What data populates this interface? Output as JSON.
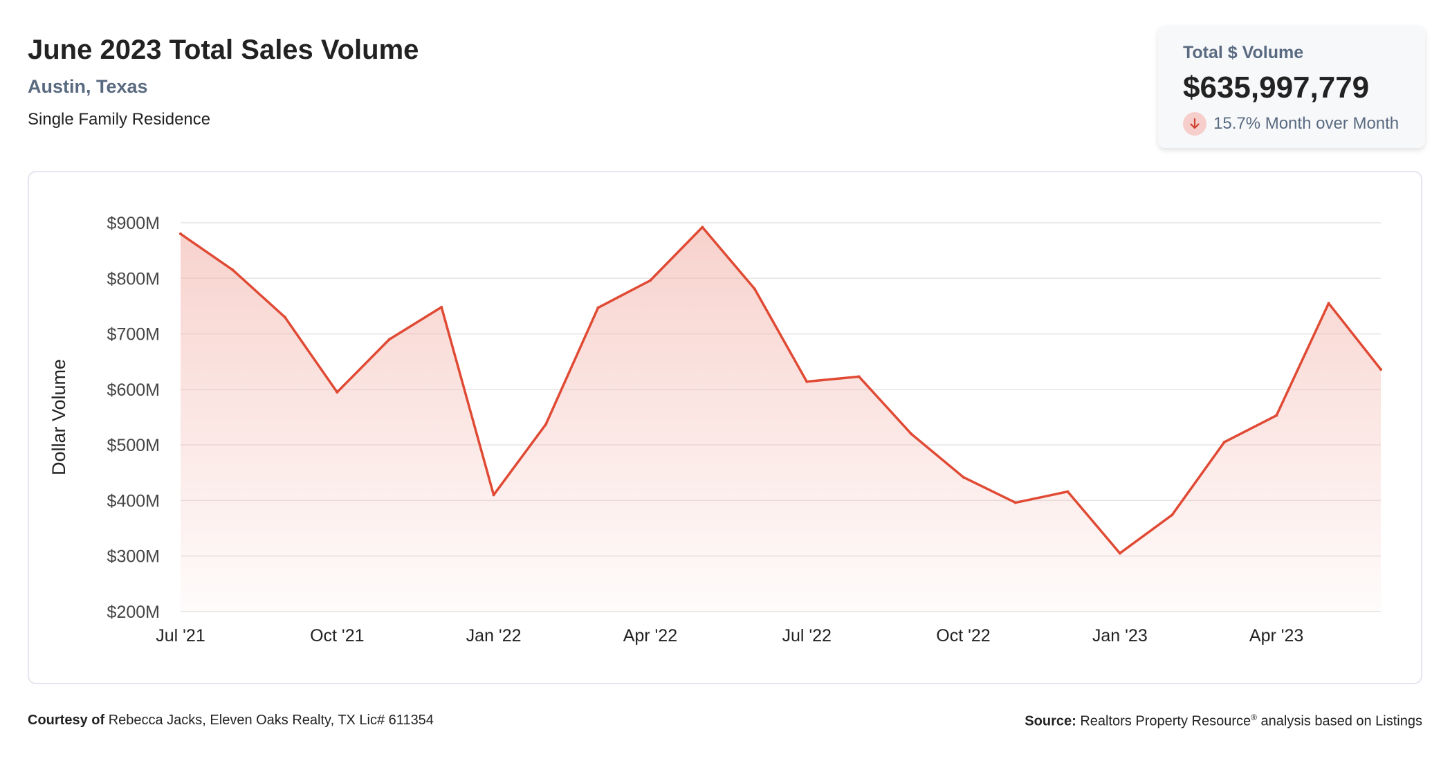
{
  "header": {
    "title": "June 2023 Total Sales Volume",
    "location": "Austin, Texas",
    "property_type": "Single Family Residence"
  },
  "kpi": {
    "label": "Total $ Volume",
    "value": "$635,997,779",
    "change_text": "15.7% Month over Month",
    "direction_icon": "arrow-down-icon"
  },
  "footer": {
    "courtesy_label": "Courtesy of",
    "courtesy_text": "Rebecca Jacks, Eleven Oaks Realty, TX Lic# 611354",
    "source_label": "Source:",
    "source_text_a": "Realtors Property Resource",
    "source_reg": "®",
    "source_text_b": "analysis based on Listings"
  },
  "colors": {
    "line": "#e04a34",
    "fill": "#f3b6ae",
    "grid": "#e4e4e4",
    "label": "#596a80",
    "badge": "#f6cfcc"
  },
  "chart_data": {
    "type": "area",
    "ylabel": "Dollar Volume",
    "ylim": [
      200,
      900
    ],
    "yticks": [
      {
        "value": 900,
        "label": "$900M"
      },
      {
        "value": 800,
        "label": "$800M"
      },
      {
        "value": 700,
        "label": "$700M"
      },
      {
        "value": 600,
        "label": "$600M"
      },
      {
        "value": 500,
        "label": "$500M"
      },
      {
        "value": 400,
        "label": "$400M"
      },
      {
        "value": 300,
        "label": "$300M"
      },
      {
        "value": 200,
        "label": "$200M"
      }
    ],
    "xticks": [
      {
        "index": 0,
        "label": "Jul '21"
      },
      {
        "index": 3,
        "label": "Oct '21"
      },
      {
        "index": 6,
        "label": "Jan '22"
      },
      {
        "index": 9,
        "label": "Apr '22"
      },
      {
        "index": 12,
        "label": "Jul '22"
      },
      {
        "index": 15,
        "label": "Oct '22"
      },
      {
        "index": 18,
        "label": "Jan '23"
      },
      {
        "index": 21,
        "label": "Apr '23"
      }
    ],
    "grid": true,
    "legend": "none",
    "categories": [
      "Jul '21",
      "Aug '21",
      "Sep '21",
      "Oct '21",
      "Nov '21",
      "Dec '21",
      "Jan '22",
      "Feb '22",
      "Mar '22",
      "Apr '22",
      "May '22",
      "Jun '22",
      "Jul '22",
      "Aug '22",
      "Sep '22",
      "Oct '22",
      "Nov '22",
      "Dec '22",
      "Jan '23",
      "Feb '23",
      "Mar '23",
      "Apr '23",
      "May '23",
      "Jun '23"
    ],
    "series": [
      {
        "values": [
          880,
          815,
          730,
          595,
          690,
          748,
          410,
          537,
          747,
          796,
          892,
          781,
          614,
          623,
          520,
          442,
          396,
          416,
          305,
          374,
          505,
          553,
          755,
          636
        ]
      }
    ]
  }
}
